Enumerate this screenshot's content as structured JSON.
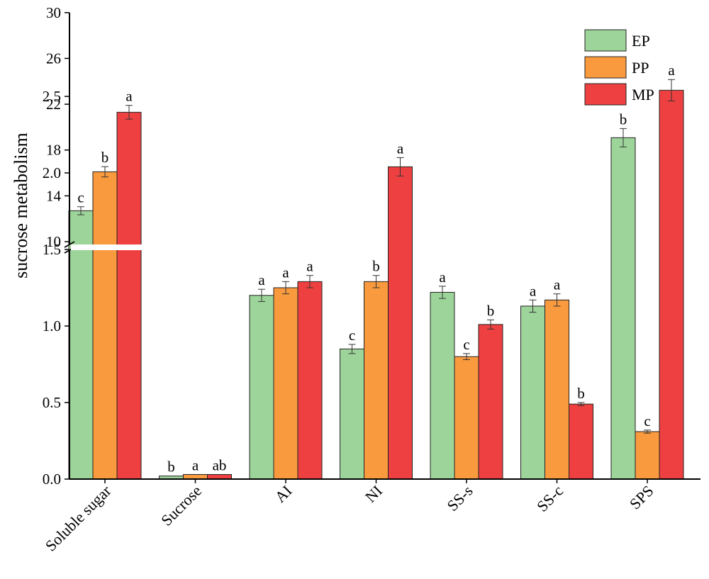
{
  "chart_data": {
    "type": "bar",
    "title": "",
    "xlabel": "",
    "ylabel": "sucrose metabolism",
    "y_break": {
      "lower_range": [
        0,
        3.0
      ],
      "upper_range": [
        10,
        30
      ]
    },
    "upper_ticks": [
      "10",
      "14",
      "18",
      "22",
      "26",
      "30"
    ],
    "lower_ticks": [
      "0.0",
      "0.5",
      "1.0",
      "1.5",
      "2.0",
      "2.5"
    ],
    "categories": [
      "Soluble sugar",
      "Sucrose",
      "AI",
      "NI",
      "SS-s",
      "SS-c",
      "SPS"
    ],
    "legend_position": "top-right",
    "series": [
      {
        "name": "EP",
        "color": "#9dd49a",
        "values": [
          12.7,
          0.02,
          1.2,
          0.85,
          1.22,
          1.13,
          2.23
        ],
        "errors": [
          0.35,
          0.0,
          0.04,
          0.03,
          0.04,
          0.04,
          0.06
        ],
        "sig_labels": [
          "c",
          "b",
          "a",
          "c",
          "a",
          "a",
          "b"
        ]
      },
      {
        "name": "PP",
        "color": "#f99a3e",
        "values": [
          16.1,
          0.03,
          1.25,
          1.29,
          0.8,
          1.17,
          0.31
        ],
        "errors": [
          0.45,
          0.0,
          0.04,
          0.04,
          0.02,
          0.04,
          0.01
        ],
        "sig_labels": [
          "b",
          "a",
          "a",
          "b",
          "c",
          "a",
          "c"
        ]
      },
      {
        "name": "MP",
        "color": "#ee4040",
        "values": [
          21.3,
          0.03,
          1.29,
          2.04,
          1.01,
          0.49,
          2.54
        ],
        "errors": [
          0.6,
          0.0,
          0.04,
          0.06,
          0.03,
          0.01,
          0.07
        ],
        "sig_labels": [
          "a",
          "ab",
          "a",
          "a",
          "b",
          "b",
          "a"
        ]
      }
    ]
  }
}
